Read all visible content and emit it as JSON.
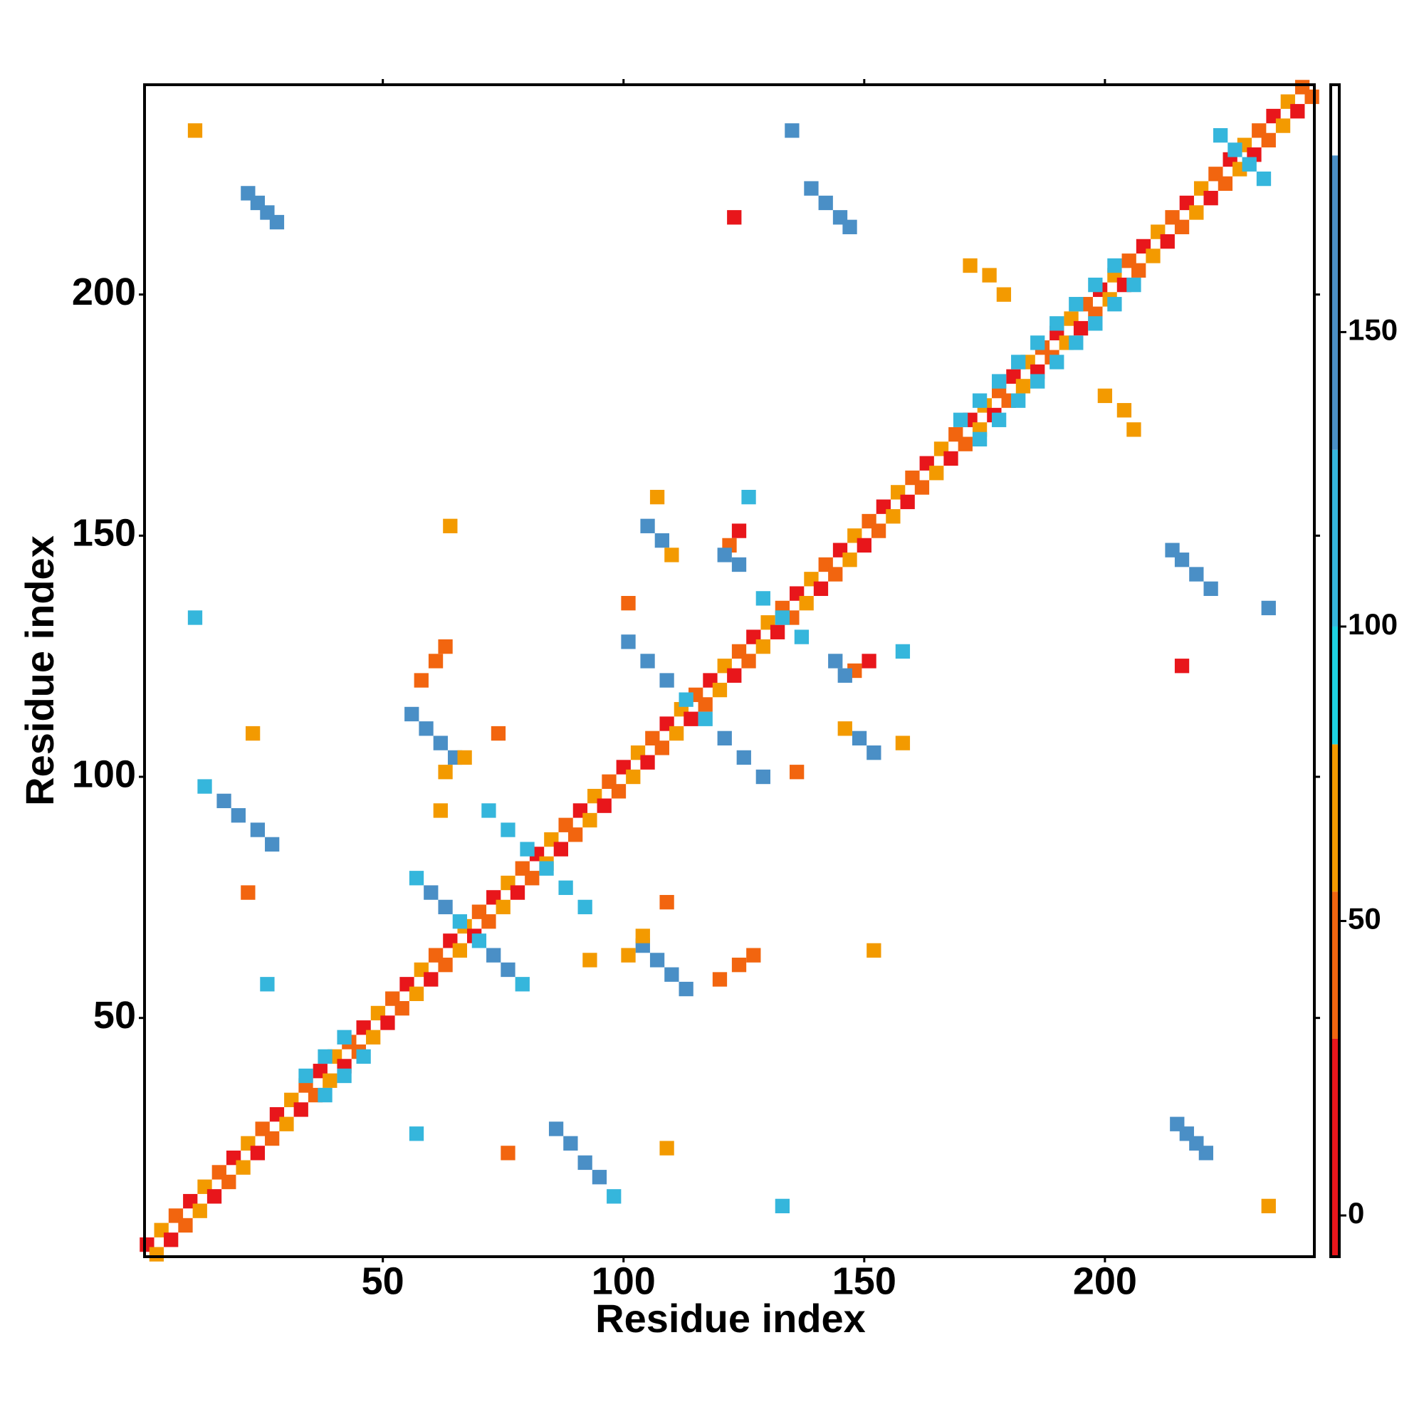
{
  "chart_data": {
    "type": "contact_map",
    "x_label": "Residue index",
    "y_label": "Residue index",
    "xlim": [
      0.5,
      243.5
    ],
    "ylim": [
      0.5,
      243.5
    ],
    "xticks": [
      50,
      100,
      150,
      200
    ],
    "yticks": [
      50,
      100,
      150,
      200
    ],
    "colorbar": {
      "bounds": [
        -7,
        30,
        55,
        80,
        100,
        130,
        180,
        192
      ],
      "colors": [
        "#e8161b",
        "#f2650f",
        "#f39a00",
        "#1ed3e3",
        "#35b6dc",
        "#4a8fc6",
        "#ffffff"
      ],
      "ticks": [
        0,
        50,
        100,
        150
      ]
    },
    "x": [
      1,
      4,
      7,
      10,
      13,
      16,
      19,
      22,
      25,
      28,
      31,
      34,
      37,
      40,
      43,
      46,
      49,
      52,
      55,
      58,
      61,
      64,
      67,
      70,
      73,
      76,
      79,
      82,
      85,
      88,
      91,
      94,
      97,
      100,
      103,
      106,
      109,
      112,
      115,
      118,
      121,
      124,
      127,
      130,
      133,
      136,
      139,
      142,
      145,
      148,
      151,
      154,
      157,
      160,
      163,
      166,
      169,
      172,
      175,
      178,
      181,
      184,
      187,
      190,
      193,
      196,
      199,
      202,
      205,
      208,
      211,
      214,
      217,
      220,
      223,
      226,
      229,
      232,
      235,
      238,
      241,
      3,
      6,
      9,
      12,
      15,
      18,
      21,
      24,
      27,
      30,
      33,
      36,
      39,
      42,
      45,
      48,
      51,
      54,
      57,
      60,
      63,
      66,
      69,
      72,
      75,
      78,
      81,
      84,
      87,
      90,
      93,
      96,
      99,
      102,
      105,
      108,
      111,
      114,
      117,
      120,
      123,
      126,
      129,
      132,
      135,
      138,
      141,
      144,
      147,
      150,
      153,
      156,
      159,
      162,
      165,
      168,
      171,
      174,
      177,
      180,
      183,
      186,
      189,
      192,
      195,
      198,
      201,
      204,
      207,
      210,
      213,
      216,
      219,
      222,
      225,
      228,
      231,
      234,
      237,
      240,
      243,
      34,
      38,
      42,
      170,
      174,
      178,
      182,
      186,
      190,
      194,
      198,
      202,
      38,
      42,
      46,
      174,
      178,
      182,
      186,
      190,
      194,
      198,
      202,
      206,
      22,
      24,
      26,
      28,
      221,
      219,
      217,
      215,
      139,
      142,
      145,
      147,
      222,
      219,
      216,
      214,
      224,
      227,
      230,
      233,
      135,
      234,
      11,
      234,
      13,
      17,
      20,
      24,
      27,
      98,
      95,
      92,
      89,
      86,
      56,
      59,
      62,
      65,
      113,
      110,
      107,
      104,
      57,
      60,
      63,
      66,
      70,
      73,
      76,
      79,
      101,
      105,
      109,
      113,
      117,
      121,
      125,
      129,
      72,
      76,
      80,
      84,
      88,
      92,
      129,
      133,
      137,
      105,
      108,
      149,
      152,
      124,
      122,
      151,
      148,
      121,
      124,
      146,
      144,
      58,
      61,
      63,
      120,
      124,
      127,
      109,
      74,
      63,
      67,
      101,
      104,
      101,
      136,
      107,
      110,
      158,
      146,
      126,
      158,
      172,
      176,
      179,
      206,
      204,
      200,
      123,
      216,
      64,
      152,
      23,
      109,
      22,
      76,
      11,
      133,
      26,
      57,
      62,
      93
    ],
    "y": [
      3,
      6,
      9,
      12,
      15,
      18,
      21,
      24,
      27,
      30,
      33,
      36,
      39,
      42,
      45,
      48,
      51,
      54,
      57,
      60,
      63,
      66,
      69,
      72,
      75,
      78,
      81,
      84,
      87,
      90,
      93,
      96,
      99,
      102,
      105,
      108,
      111,
      114,
      117,
      120,
      123,
      126,
      129,
      132,
      135,
      138,
      141,
      144,
      147,
      150,
      153,
      156,
      159,
      162,
      165,
      168,
      171,
      174,
      177,
      180,
      183,
      186,
      189,
      192,
      195,
      198,
      201,
      204,
      207,
      210,
      213,
      216,
      219,
      222,
      225,
      228,
      231,
      234,
      237,
      240,
      243,
      1,
      4,
      7,
      10,
      13,
      16,
      19,
      22,
      25,
      28,
      31,
      34,
      37,
      40,
      43,
      46,
      49,
      52,
      55,
      58,
      61,
      64,
      67,
      70,
      73,
      76,
      79,
      82,
      85,
      88,
      91,
      94,
      97,
      100,
      103,
      106,
      109,
      112,
      115,
      118,
      121,
      124,
      127,
      130,
      133,
      136,
      139,
      142,
      145,
      148,
      151,
      154,
      157,
      160,
      163,
      166,
      169,
      172,
      175,
      178,
      181,
      184,
      187,
      190,
      193,
      196,
      199,
      202,
      205,
      208,
      211,
      214,
      217,
      220,
      223,
      226,
      229,
      232,
      235,
      238,
      241,
      38,
      42,
      46,
      174,
      178,
      182,
      186,
      190,
      194,
      198,
      202,
      206,
      34,
      38,
      42,
      170,
      174,
      178,
      182,
      186,
      190,
      194,
      198,
      202,
      221,
      219,
      217,
      215,
      22,
      24,
      26,
      28,
      222,
      219,
      216,
      214,
      139,
      142,
      145,
      147,
      233,
      230,
      227,
      224,
      234,
      135,
      234,
      11,
      98,
      95,
      92,
      89,
      86,
      13,
      17,
      20,
      24,
      27,
      113,
      110,
      107,
      104,
      56,
      59,
      62,
      65,
      79,
      76,
      73,
      70,
      66,
      63,
      60,
      57,
      128,
      124,
      120,
      116,
      112,
      108,
      104,
      100,
      93,
      89,
      85,
      81,
      77,
      73,
      137,
      133,
      129,
      152,
      149,
      108,
      105,
      151,
      148,
      124,
      122,
      146,
      144,
      121,
      124,
      120,
      124,
      127,
      58,
      61,
      63,
      74,
      109,
      101,
      104,
      63,
      67,
      136,
      101,
      158,
      146,
      107,
      110,
      158,
      126,
      206,
      204,
      200,
      172,
      176,
      179,
      216,
      123,
      152,
      64,
      109,
      23,
      76,
      22,
      133,
      11,
      57,
      26,
      93,
      62
    ],
    "values": [
      10,
      60,
      35,
      10,
      60,
      35,
      10,
      60,
      35,
      10,
      60,
      35,
      10,
      60,
      35,
      10,
      60,
      35,
      10,
      60,
      35,
      10,
      60,
      35,
      10,
      60,
      35,
      10,
      60,
      35,
      10,
      60,
      35,
      10,
      60,
      35,
      10,
      60,
      35,
      10,
      60,
      35,
      10,
      60,
      35,
      10,
      60,
      35,
      10,
      60,
      35,
      10,
      60,
      35,
      10,
      60,
      35,
      10,
      60,
      35,
      10,
      60,
      35,
      10,
      60,
      35,
      10,
      60,
      35,
      10,
      60,
      35,
      10,
      60,
      35,
      10,
      60,
      35,
      10,
      60,
      35,
      60,
      10,
      35,
      60,
      10,
      35,
      60,
      10,
      35,
      60,
      10,
      35,
      60,
      10,
      35,
      60,
      10,
      35,
      60,
      10,
      35,
      60,
      10,
      35,
      60,
      10,
      35,
      60,
      10,
      35,
      60,
      10,
      35,
      60,
      10,
      35,
      60,
      10,
      35,
      60,
      10,
      35,
      60,
      10,
      35,
      60,
      10,
      35,
      60,
      10,
      35,
      60,
      10,
      35,
      60,
      10,
      35,
      60,
      10,
      35,
      60,
      10,
      35,
      60,
      10,
      35,
      60,
      10,
      35,
      60,
      10,
      35,
      60,
      10,
      35,
      60,
      10,
      35,
      60,
      10,
      35,
      100,
      100,
      100,
      100,
      100,
      100,
      100,
      100,
      100,
      100,
      100,
      100,
      100,
      100,
      100,
      100,
      100,
      100,
      100,
      100,
      100,
      100,
      100,
      100,
      150,
      150,
      150,
      150,
      150,
      150,
      150,
      150,
      150,
      150,
      150,
      150,
      150,
      150,
      150,
      150,
      100,
      100,
      100,
      100,
      150,
      150,
      60,
      60,
      100,
      150,
      150,
      150,
      150,
      100,
      150,
      150,
      150,
      150,
      150,
      150,
      150,
      150,
      150,
      150,
      150,
      150,
      120,
      150,
      150,
      100,
      100,
      150,
      150,
      120,
      150,
      150,
      150,
      100,
      100,
      150,
      150,
      150,
      120,
      120,
      100,
      100,
      120,
      120,
      100,
      100,
      100,
      150,
      150,
      150,
      150,
      10,
      30,
      10,
      30,
      150,
      150,
      150,
      150,
      35,
      35,
      35,
      35,
      35,
      35,
      35,
      35,
      60,
      60,
      60,
      60,
      35,
      35,
      60,
      60,
      60,
      60,
      100,
      100,
      60,
      60,
      60,
      60,
      60,
      60,
      20,
      20,
      60,
      60,
      60,
      60,
      35,
      35,
      100,
      100,
      100,
      100,
      60,
      60
    ]
  }
}
